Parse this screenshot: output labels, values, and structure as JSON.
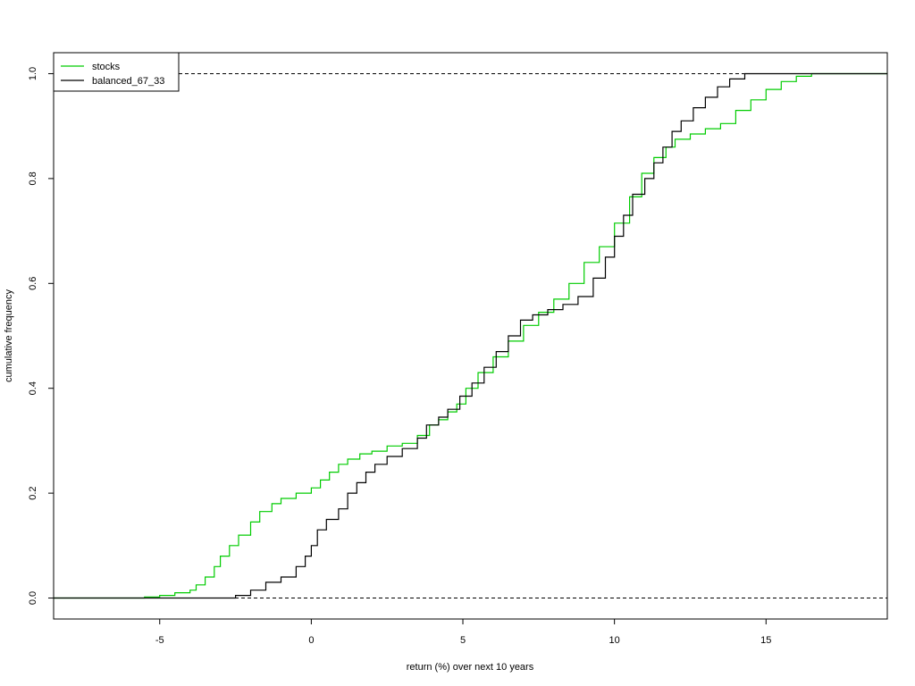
{
  "chart_data": {
    "type": "line",
    "title": "",
    "xlabel": "return (%) over next 10 years",
    "ylabel": "cumulative frequency",
    "xlim": [
      -8.5,
      19
    ],
    "ylim": [
      -0.04,
      1.04
    ],
    "x_ticks": [
      -5,
      0,
      5,
      10,
      15
    ],
    "x_tick_labels": [
      "-5",
      "0",
      "5",
      "10",
      "15"
    ],
    "y_ticks": [
      0,
      0.2,
      0.4,
      0.6,
      0.8,
      1
    ],
    "y_tick_labels": [
      "0.0",
      "0.2",
      "0.4",
      "0.6",
      "0.8",
      "1.0"
    ],
    "reference_lines": [
      0,
      1
    ],
    "grid": false,
    "legend_position": "top-left",
    "series": [
      {
        "name": "stocks",
        "color": "#00cc00",
        "x": [
          -8.5,
          -6.0,
          -5.5,
          -5.0,
          -4.5,
          -4.0,
          -3.8,
          -3.5,
          -3.2,
          -3.0,
          -2.7,
          -2.4,
          -2.0,
          -1.7,
          -1.3,
          -1.0,
          -0.5,
          0.0,
          0.3,
          0.6,
          0.9,
          1.2,
          1.6,
          2.0,
          2.5,
          3.0,
          3.5,
          3.9,
          4.2,
          4.5,
          4.8,
          5.1,
          5.5,
          6.0,
          6.5,
          7.0,
          7.5,
          8.0,
          8.5,
          9.0,
          9.5,
          10.0,
          10.5,
          10.9,
          11.3,
          11.7,
          12.0,
          12.5,
          13.0,
          13.5,
          14.0,
          14.5,
          15.0,
          15.5,
          16.0,
          16.5,
          19.0
        ],
        "y": [
          0,
          0,
          0.002,
          0.005,
          0.01,
          0.015,
          0.025,
          0.04,
          0.06,
          0.08,
          0.1,
          0.12,
          0.145,
          0.165,
          0.18,
          0.19,
          0.2,
          0.21,
          0.225,
          0.24,
          0.255,
          0.265,
          0.275,
          0.28,
          0.29,
          0.295,
          0.31,
          0.33,
          0.34,
          0.355,
          0.37,
          0.4,
          0.43,
          0.46,
          0.49,
          0.52,
          0.545,
          0.57,
          0.6,
          0.64,
          0.67,
          0.715,
          0.765,
          0.81,
          0.84,
          0.86,
          0.875,
          0.885,
          0.895,
          0.905,
          0.93,
          0.95,
          0.97,
          0.985,
          0.995,
          1.0,
          1.0
        ]
      },
      {
        "name": "balanced_67_33",
        "color": "#000000",
        "x": [
          -8.5,
          -3.0,
          -2.5,
          -2.0,
          -1.5,
          -1.0,
          -0.5,
          -0.2,
          0.0,
          0.2,
          0.5,
          0.9,
          1.2,
          1.5,
          1.8,
          2.1,
          2.5,
          3.0,
          3.5,
          3.8,
          4.2,
          4.5,
          4.9,
          5.3,
          5.7,
          6.1,
          6.5,
          6.9,
          7.3,
          7.8,
          8.3,
          8.8,
          9.3,
          9.7,
          10.0,
          10.3,
          10.6,
          11.0,
          11.3,
          11.6,
          11.9,
          12.2,
          12.6,
          13.0,
          13.4,
          13.8,
          14.3,
          19.0
        ],
        "y": [
          0,
          0,
          0.005,
          0.015,
          0.03,
          0.04,
          0.06,
          0.08,
          0.1,
          0.13,
          0.15,
          0.17,
          0.2,
          0.22,
          0.24,
          0.255,
          0.27,
          0.285,
          0.305,
          0.33,
          0.345,
          0.36,
          0.385,
          0.41,
          0.44,
          0.47,
          0.5,
          0.53,
          0.54,
          0.55,
          0.56,
          0.575,
          0.61,
          0.65,
          0.69,
          0.73,
          0.77,
          0.8,
          0.83,
          0.86,
          0.89,
          0.91,
          0.935,
          0.955,
          0.975,
          0.99,
          1.0,
          1.0
        ]
      }
    ]
  }
}
